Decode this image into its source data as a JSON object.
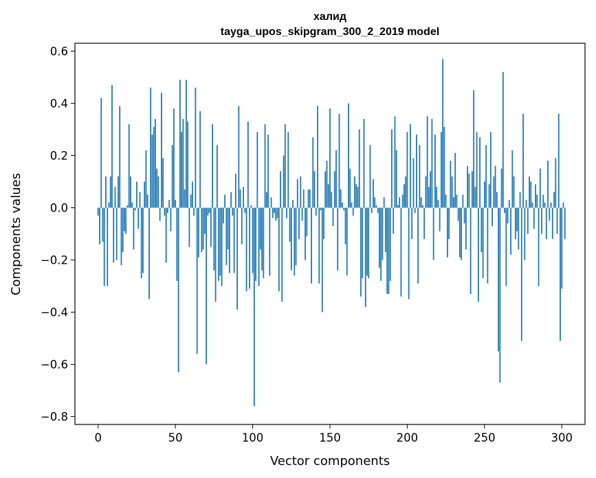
{
  "chart_data": {
    "type": "bar",
    "title": "халид",
    "subtitle": "tayga_upos_skipgram_300_2_2019 model",
    "xlabel": "Vector components",
    "ylabel": "Components values",
    "xlim": [
      -15,
      315
    ],
    "ylim": [
      -0.83,
      0.63
    ],
    "xticks": [
      0,
      50,
      100,
      150,
      200,
      250,
      300
    ],
    "xtick_labels": [
      "0",
      "50",
      "100",
      "150",
      "200",
      "250",
      "300"
    ],
    "yticks": [
      -0.8,
      -0.6,
      -0.4,
      -0.2,
      0.0,
      0.2,
      0.4,
      0.6
    ],
    "ytick_labels": [
      "−0.8",
      "−0.6",
      "−0.4",
      "−0.2",
      "0.0",
      "0.2",
      "0.4",
      "0.6"
    ],
    "bar_color": "#1f77b4",
    "grid": false,
    "values": [
      -0.03,
      -0.14,
      0.42,
      -0.13,
      -0.3,
      0.12,
      -0.3,
      0.02,
      0.12,
      0.47,
      -0.21,
      0.08,
      -0.2,
      0.12,
      0.39,
      -0.22,
      -0.17,
      -0.09,
      -0.1,
      0.01,
      0.32,
      0.12,
      0.02,
      -0.16,
      -0.01,
      0.1,
      -0.08,
      0.06,
      -0.27,
      -0.25,
      0.1,
      0.22,
      0.05,
      -0.35,
      0.46,
      0.28,
      0.31,
      0.34,
      0.15,
      0.12,
      -0.05,
      0.44,
      0.19,
      -0.03,
      -0.21,
      -0.02,
      0.03,
      -0.09,
      0.24,
      0.38,
      0.03,
      -0.28,
      -0.63,
      0.49,
      0.29,
      0.34,
      0.07,
      0.49,
      0.33,
      -0.15,
      0.05,
      0.1,
      -0.03,
      0.46,
      -0.56,
      -0.19,
      0.37,
      -0.17,
      -0.16,
      -0.1,
      -0.6,
      -0.03,
      -0.02,
      -0.15,
      0.32,
      -0.24,
      -0.36,
      0.24,
      -0.28,
      -0.26,
      -0.3,
      -0.06,
      0.05,
      -0.22,
      -0.16,
      -0.25,
      0.06,
      -0.03,
      -0.25,
      0.13,
      -0.39,
      0.39,
      0.07,
      -0.14,
      0.08,
      -0.02,
      -0.32,
      0.33,
      -0.31,
      0.01,
      -0.25,
      -0.76,
      -0.28,
      0.29,
      -0.3,
      -0.16,
      -0.24,
      -0.27,
      0.32,
      0.06,
      0.28,
      -0.26,
      0.04,
      -0.04,
      -0.02,
      -0.05,
      -0.04,
      -0.32,
      0.14,
      -0.36,
      0.2,
      0.32,
      -0.04,
      0.29,
      -0.13,
      -0.24,
      0.03,
      -0.26,
      -0.22,
      0.11,
      -0.12,
      0.12,
      -0.05,
      0.07,
      -0.2,
      -0.11,
      0.07,
      0.07,
      -0.29,
      0.27,
      0.14,
      -0.03,
      0.39,
      -0.29,
      -0.01,
      -0.4,
      -0.12,
      0.14,
      0.18,
      0.09,
      0.38,
      0.06,
      -0.07,
      0.14,
      0.22,
      -0.24,
      0.36,
      0.07,
      0.02,
      -0.01,
      -0.14,
      -0.26,
      0.4,
      0.15,
      0.02,
      -0.03,
      0.12,
      0.09,
      0.08,
      0.3,
      -0.34,
      -0.27,
      0.34,
      -0.38,
      -0.26,
      -0.27,
      0.24,
      -0.02,
      0.11,
      0.04,
      0.01,
      -0.02,
      -0.23,
      -0.28,
      -0.2,
      0.04,
      -0.17,
      -0.33,
      -0.33,
      -0.28,
      0.3,
      -0.1,
      0.35,
      0.22,
      0.01,
      0.04,
      -0.34,
      0.05,
      0.09,
      0.12,
      0.29,
      -0.35,
      0.32,
      -0.12,
      0.19,
      -0.02,
      0.28,
      -0.29,
      0.24,
      0.04,
      0.01,
      -0.12,
      0.12,
      0.35,
      0.08,
      0.14,
      0.34,
      -0.2,
      0.28,
      0.08,
      0.03,
      -0.09,
      0.29,
      0.57,
      0.31,
      0.05,
      -0.19,
      -0.12,
      0.18,
      0.12,
      0.04,
      0.21,
      0.05,
      -0.05,
      -0.19,
      -0.2,
      0.05,
      -0.06,
      -0.16,
      0.16,
      0.13,
      -0.33,
      0.14,
      0.45,
      0.08,
      0.29,
      -0.36,
      0.27,
      -0.17,
      -0.27,
      0.1,
      0.24,
      -0.29,
      0.09,
      0.29,
      -0.07,
      0.12,
      0.16,
      0.06,
      -0.55,
      -0.67,
      0.15,
      0.52,
      -0.02,
      -0.3,
      -0.06,
      0.03,
      -0.18,
      0.22,
      0.12,
      -0.12,
      -0.09,
      -0.16,
      0.06,
      -0.51,
      0.36,
      -0.2,
      0.03,
      -0.1,
      0.12,
      0.1,
      0.02,
      -0.08,
      0.09,
      0.05,
      -0.3,
      0.15,
      -0.1,
      0.05,
      0.02,
      -0.12,
      0.18,
      -0.05,
      0.02,
      -0.12,
      0.06,
      0.19,
      -0.1,
      0.36,
      -0.51,
      -0.31,
      0.02,
      -0.12
    ]
  }
}
